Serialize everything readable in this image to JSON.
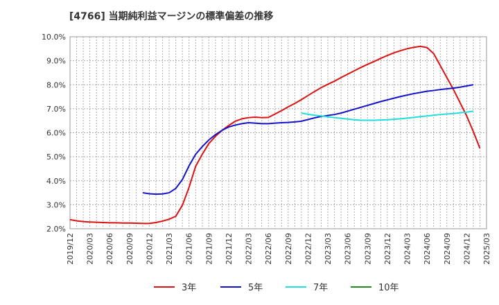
{
  "chart_data": {
    "type": "line",
    "title": "[4766]  当期純利益マージンの標準偏差の推移",
    "ylim": [
      2.0,
      10.0
    ],
    "yticks": [
      "10.0%",
      "9.0%",
      "8.0%",
      "7.0%",
      "6.0%",
      "5.0%",
      "4.0%",
      "3.0%",
      "2.0%"
    ],
    "ytick_values": [
      10,
      9,
      8,
      7,
      6,
      5,
      4,
      3,
      2
    ],
    "xticks": [
      "2019/12",
      "2020/03",
      "2020/06",
      "2020/09",
      "2020/12",
      "2021/03",
      "2021/06",
      "2021/09",
      "2021/12",
      "2022/03",
      "2022/06",
      "2022/09",
      "2022/12",
      "2023/03",
      "2023/06",
      "2023/09",
      "2023/12",
      "2024/03",
      "2024/06",
      "2024/09",
      "2024/12",
      "2025/03"
    ],
    "grid": true,
    "legend_position": "bottom",
    "series": [
      {
        "name": "3年",
        "color": "#dd1111",
        "points": [
          [
            "2019/12",
            2.38
          ],
          [
            "2020/01",
            2.33
          ],
          [
            "2020/02",
            2.3
          ],
          [
            "2020/03",
            2.28
          ],
          [
            "2020/04",
            2.27
          ],
          [
            "2020/05",
            2.26
          ],
          [
            "2020/06",
            2.25
          ],
          [
            "2020/07",
            2.25
          ],
          [
            "2020/08",
            2.24
          ],
          [
            "2020/09",
            2.24
          ],
          [
            "2020/10",
            2.23
          ],
          [
            "2020/11",
            2.22
          ],
          [
            "2020/12",
            2.22
          ],
          [
            "2021/01",
            2.26
          ],
          [
            "2021/02",
            2.32
          ],
          [
            "2021/03",
            2.4
          ],
          [
            "2021/04",
            2.52
          ],
          [
            "2021/05",
            2.98
          ],
          [
            "2021/06",
            3.72
          ],
          [
            "2021/07",
            4.6
          ],
          [
            "2021/08",
            5.1
          ],
          [
            "2021/09",
            5.55
          ],
          [
            "2021/10",
            5.85
          ],
          [
            "2021/11",
            6.1
          ],
          [
            "2021/12",
            6.3
          ],
          [
            "2022/01",
            6.48
          ],
          [
            "2022/02",
            6.58
          ],
          [
            "2022/03",
            6.63
          ],
          [
            "2022/04",
            6.65
          ],
          [
            "2022/05",
            6.63
          ],
          [
            "2022/06",
            6.64
          ],
          [
            "2022/07",
            6.78
          ],
          [
            "2022/08",
            6.92
          ],
          [
            "2022/09",
            7.08
          ],
          [
            "2022/10",
            7.22
          ],
          [
            "2022/11",
            7.38
          ],
          [
            "2022/12",
            7.55
          ],
          [
            "2023/01",
            7.72
          ],
          [
            "2023/02",
            7.88
          ],
          [
            "2023/03",
            8.02
          ],
          [
            "2023/04",
            8.15
          ],
          [
            "2023/05",
            8.3
          ],
          [
            "2023/06",
            8.44
          ],
          [
            "2023/07",
            8.58
          ],
          [
            "2023/08",
            8.72
          ],
          [
            "2023/09",
            8.85
          ],
          [
            "2023/10",
            8.97
          ],
          [
            "2023/11",
            9.1
          ],
          [
            "2023/12",
            9.22
          ],
          [
            "2024/01",
            9.33
          ],
          [
            "2024/02",
            9.42
          ],
          [
            "2024/03",
            9.5
          ],
          [
            "2024/04",
            9.56
          ],
          [
            "2024/05",
            9.6
          ],
          [
            "2024/06",
            9.55
          ],
          [
            "2024/07",
            9.3
          ],
          [
            "2024/08",
            8.8
          ],
          [
            "2024/09",
            8.3
          ],
          [
            "2024/10",
            7.8
          ],
          [
            "2024/11",
            7.25
          ],
          [
            "2024/12",
            6.7
          ],
          [
            "2025/01",
            6.05
          ],
          [
            "2025/02",
            5.35
          ]
        ]
      },
      {
        "name": "5年",
        "color": "#1111cc",
        "points": [
          [
            "2020/11",
            3.5
          ],
          [
            "2020/12",
            3.46
          ],
          [
            "2021/01",
            3.44
          ],
          [
            "2021/02",
            3.45
          ],
          [
            "2021/03",
            3.5
          ],
          [
            "2021/04",
            3.68
          ],
          [
            "2021/05",
            4.05
          ],
          [
            "2021/06",
            4.62
          ],
          [
            "2021/07",
            5.1
          ],
          [
            "2021/08",
            5.42
          ],
          [
            "2021/09",
            5.7
          ],
          [
            "2021/10",
            5.92
          ],
          [
            "2021/11",
            6.1
          ],
          [
            "2021/12",
            6.24
          ],
          [
            "2022/01",
            6.32
          ],
          [
            "2022/02",
            6.38
          ],
          [
            "2022/03",
            6.42
          ],
          [
            "2022/04",
            6.4
          ],
          [
            "2022/05",
            6.38
          ],
          [
            "2022/06",
            6.38
          ],
          [
            "2022/07",
            6.4
          ],
          [
            "2022/08",
            6.42
          ],
          [
            "2022/09",
            6.43
          ],
          [
            "2022/10",
            6.45
          ],
          [
            "2022/11",
            6.48
          ],
          [
            "2022/12",
            6.55
          ],
          [
            "2023/01",
            6.62
          ],
          [
            "2023/02",
            6.68
          ],
          [
            "2023/03",
            6.72
          ],
          [
            "2023/04",
            6.76
          ],
          [
            "2023/05",
            6.82
          ],
          [
            "2023/06",
            6.9
          ],
          [
            "2023/07",
            6.98
          ],
          [
            "2023/08",
            7.06
          ],
          [
            "2023/09",
            7.14
          ],
          [
            "2023/10",
            7.22
          ],
          [
            "2023/11",
            7.3
          ],
          [
            "2023/12",
            7.37
          ],
          [
            "2024/01",
            7.44
          ],
          [
            "2024/02",
            7.51
          ],
          [
            "2024/03",
            7.57
          ],
          [
            "2024/04",
            7.63
          ],
          [
            "2024/05",
            7.68
          ],
          [
            "2024/06",
            7.73
          ],
          [
            "2024/07",
            7.76
          ],
          [
            "2024/08",
            7.8
          ],
          [
            "2024/09",
            7.83
          ],
          [
            "2024/10",
            7.86
          ],
          [
            "2024/11",
            7.9
          ],
          [
            "2024/12",
            7.95
          ],
          [
            "2025/01",
            8.0
          ]
        ]
      },
      {
        "name": "7年",
        "color": "#22dddd",
        "points": [
          [
            "2022/11",
            6.82
          ],
          [
            "2022/12",
            6.77
          ],
          [
            "2023/01",
            6.73
          ],
          [
            "2023/02",
            6.7
          ],
          [
            "2023/03",
            6.66
          ],
          [
            "2023/04",
            6.63
          ],
          [
            "2023/05",
            6.6
          ],
          [
            "2023/06",
            6.57
          ],
          [
            "2023/07",
            6.54
          ],
          [
            "2023/08",
            6.52
          ],
          [
            "2023/09",
            6.52
          ],
          [
            "2023/10",
            6.52
          ],
          [
            "2023/11",
            6.53
          ],
          [
            "2023/12",
            6.54
          ],
          [
            "2024/01",
            6.56
          ],
          [
            "2024/02",
            6.58
          ],
          [
            "2024/03",
            6.61
          ],
          [
            "2024/04",
            6.64
          ],
          [
            "2024/05",
            6.67
          ],
          [
            "2024/06",
            6.7
          ],
          [
            "2024/07",
            6.73
          ],
          [
            "2024/08",
            6.76
          ],
          [
            "2024/09",
            6.78
          ],
          [
            "2024/10",
            6.8
          ],
          [
            "2024/11",
            6.83
          ],
          [
            "2024/12",
            6.86
          ],
          [
            "2025/01",
            6.9
          ]
        ]
      },
      {
        "name": "10年",
        "color": "#228822",
        "points": []
      }
    ]
  }
}
